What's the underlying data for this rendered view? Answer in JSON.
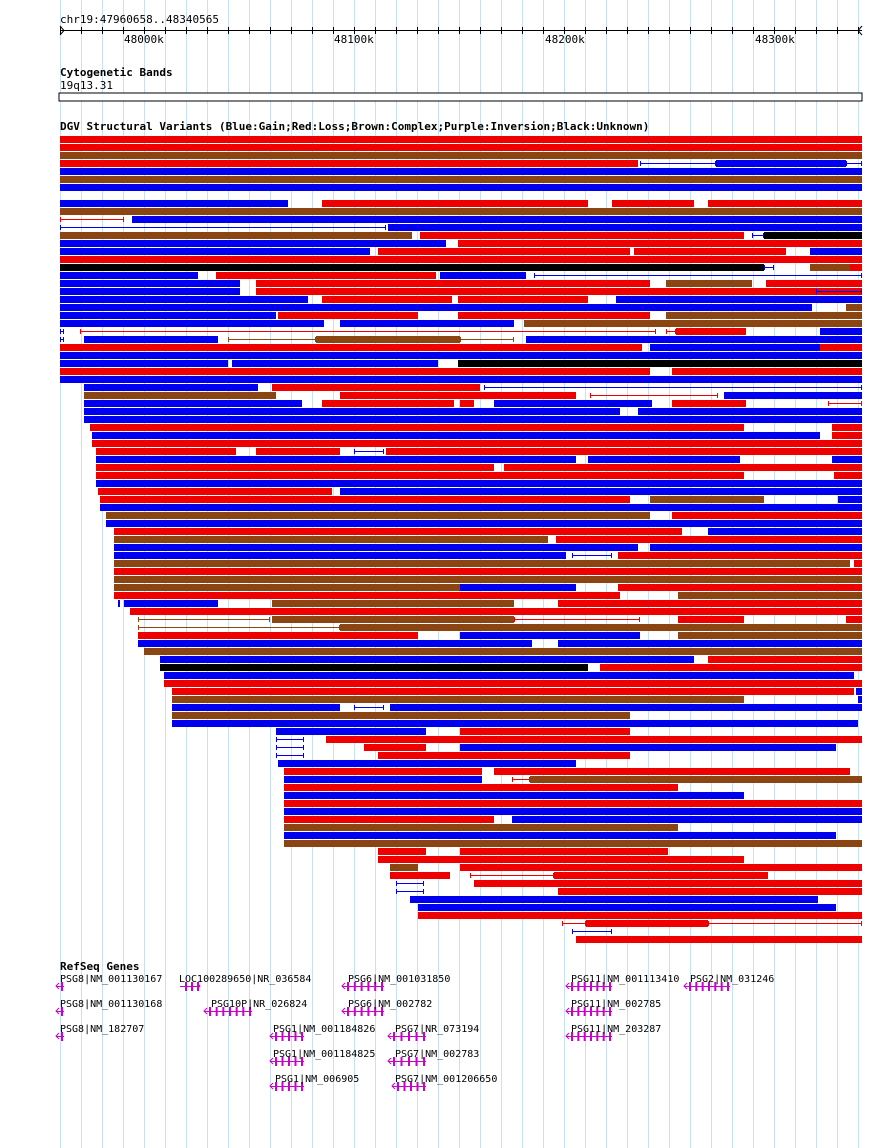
{
  "locus": "chr19:47960658..48340565",
  "ruler": {
    "tick_labels": [
      "48000k",
      "48100k",
      "48200k",
      "48300k"
    ],
    "tick_values": [
      48000000,
      48100000,
      48200000,
      48300000
    ]
  },
  "cytobands": {
    "title": "Cytogenetic Bands",
    "band": "19q13.31"
  },
  "dgv": {
    "title": "DGV Structural Variants (Blue:Gain;Red:Loss;Brown:Complex;Purple:Inversion;Black:Unknown)",
    "colors": {
      "gain": "#0000ee",
      "loss": "#ee0000",
      "complex": "#8b4513",
      "unknown": "#000000"
    }
  },
  "refseq": {
    "title": "RefSeq Genes",
    "color": "#cc00cc",
    "genes": [
      {
        "label": "PSG8|NM_001130167",
        "glyph": "<|"
      },
      {
        "label": "PSG8|NM_001130168",
        "glyph": "<|"
      },
      {
        "label": "PSG8|NM_182707",
        "glyph": "<|"
      },
      {
        "label": "LOC100289650|NR_036584",
        "glyph": "||>"
      },
      {
        "label": "PSG10P|NR_026824",
        "glyph": "<|-|^-|"
      },
      {
        "label": "PSG6|NM_001031850",
        "glyph": "<||Y|Y|"
      },
      {
        "label": "PSG6|NM_002782",
        "glyph": "<||Y|Y|"
      },
      {
        "label": "PSG1|NM_001184826",
        "glyph": "<||Y|Y|"
      },
      {
        "label": "PSG1|NM_001184825",
        "glyph": "<||Y|Y|"
      },
      {
        "label": "PSG1|NM_006905",
        "glyph": "<||Y|Y|"
      },
      {
        "label": "PSG7|NR_073194",
        "glyph": "<||Y|Y|"
      },
      {
        "label": "PSG7|NM_002783",
        "glyph": "<||Y|Y|"
      },
      {
        "label": "PSG7|NM_001206650",
        "glyph": "<||Y|^|"
      },
      {
        "label": "PSG11|NM_001113410",
        "glyph": "<||Y|Y|"
      },
      {
        "label": "PSG11|NM_002785",
        "glyph": "<||Y|Y|"
      },
      {
        "label": "PSG11|NM_203287",
        "glyph": "<||Y|^|"
      },
      {
        "label": "PSG2|NM_031246",
        "glyph": "<||Y|Y|"
      }
    ]
  }
}
